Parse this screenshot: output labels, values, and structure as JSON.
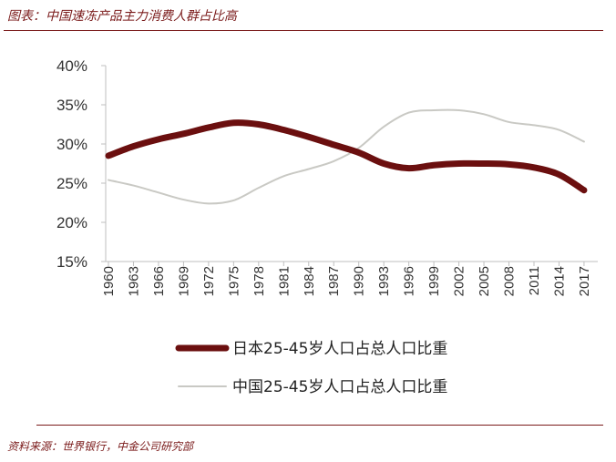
{
  "header": {
    "title": "图表：中国速冻产品主力消费人群占比高"
  },
  "footer": {
    "source": "资料来源：世界银行，中金公司研究部"
  },
  "chart_data": {
    "type": "line",
    "ylim": [
      0.15,
      0.4
    ],
    "y_ticks": [
      0.15,
      0.2,
      0.25,
      0.3,
      0.35,
      0.4
    ],
    "y_tick_labels": [
      "15%",
      "20%",
      "25%",
      "30%",
      "35%",
      "40%"
    ],
    "x_tick_labels": [
      "1960",
      "1963",
      "1966",
      "1969",
      "1972",
      "1975",
      "1978",
      "1981",
      "1984",
      "1987",
      "1990",
      "1993",
      "1996",
      "1999",
      "2002",
      "2005",
      "2008",
      "2011",
      "2014",
      "2017"
    ],
    "x": [
      1960,
      1963,
      1966,
      1969,
      1972,
      1975,
      1978,
      1981,
      1984,
      1987,
      1990,
      1993,
      1996,
      1999,
      2002,
      2005,
      2008,
      2011,
      2014,
      2017
    ],
    "grid": false,
    "legend_position": "bottom",
    "series": [
      {
        "name": "日本25-45岁人口占总人口比重",
        "color": "#6b0f0f",
        "width": "thick",
        "values": [
          0.285,
          0.297,
          0.306,
          0.313,
          0.321,
          0.327,
          0.325,
          0.318,
          0.309,
          0.299,
          0.289,
          0.275,
          0.269,
          0.273,
          0.275,
          0.275,
          0.274,
          0.27,
          0.261,
          0.241
        ]
      },
      {
        "name": "中国25-45岁人口占总人口比重",
        "color": "#c9c9c4",
        "width": "thin",
        "values": [
          0.254,
          0.247,
          0.238,
          0.229,
          0.224,
          0.228,
          0.244,
          0.259,
          0.268,
          0.278,
          0.295,
          0.322,
          0.34,
          0.343,
          0.343,
          0.338,
          0.328,
          0.324,
          0.318,
          0.303
        ]
      }
    ]
  }
}
